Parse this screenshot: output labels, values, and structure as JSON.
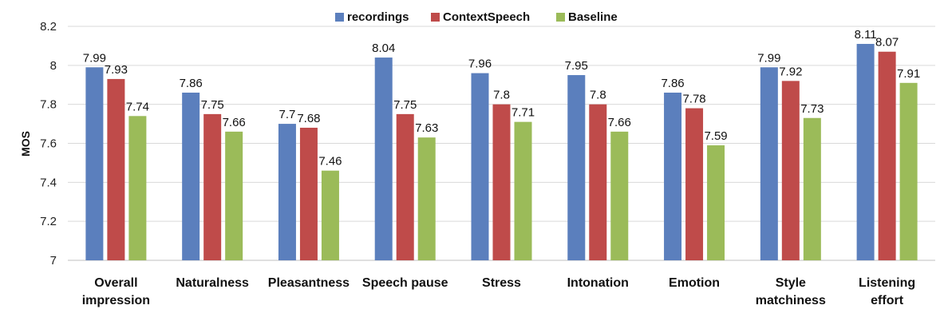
{
  "chart_data": {
    "type": "bar",
    "title": "",
    "xlabel": "",
    "ylabel": "MOS",
    "ylim": [
      7,
      8.2
    ],
    "yticks": [
      "7",
      "7.2",
      "7.4",
      "7.6",
      "7.8",
      "8",
      "8.2"
    ],
    "grid": true,
    "legend_position": "top-center",
    "categories": [
      [
        "Overall",
        "impression"
      ],
      [
        "Naturalness"
      ],
      [
        "Pleasantness"
      ],
      [
        "Speech pause"
      ],
      [
        "Stress"
      ],
      [
        "Intonation"
      ],
      [
        "Emotion"
      ],
      [
        "Style",
        "matchiness"
      ],
      [
        "Listening",
        "effort"
      ]
    ],
    "series": [
      {
        "name": "recordings",
        "color": "#5b7fbd",
        "values": [
          7.99,
          7.86,
          7.7,
          8.04,
          7.96,
          7.95,
          7.86,
          7.99,
          8.11
        ],
        "labels": [
          "7.99",
          "7.86",
          "7.7",
          "8.04",
          "7.96",
          "7.95",
          "7.86",
          "7.99",
          "8.11"
        ]
      },
      {
        "name": "ContextSpeech",
        "color": "#bf4b4a",
        "values": [
          7.93,
          7.75,
          7.68,
          7.75,
          7.8,
          7.8,
          7.78,
          7.92,
          8.07
        ],
        "labels": [
          "7.93",
          "7.75",
          "7.68",
          "7.75",
          "7.8",
          "7.8",
          "7.78",
          "7.92",
          "8.07"
        ]
      },
      {
        "name": "Baseline",
        "color": "#9bbb59",
        "values": [
          7.74,
          7.66,
          7.46,
          7.63,
          7.71,
          7.66,
          7.59,
          7.73,
          7.91
        ],
        "labels": [
          "7.74",
          "7.66",
          "7.46",
          "7.63",
          "7.71",
          "7.66",
          "7.59",
          "7.73",
          "7.91"
        ]
      }
    ]
  }
}
